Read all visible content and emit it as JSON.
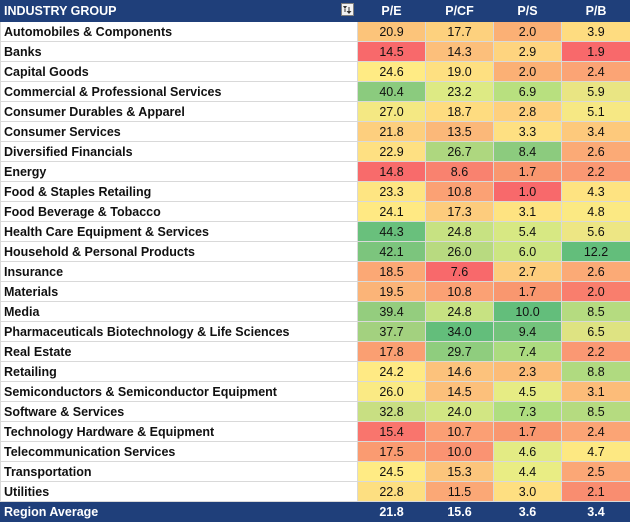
{
  "header": {
    "industry_group": "INDUSTRY GROUP",
    "columns": [
      "P/E",
      "P/CF",
      "P/S",
      "P/B"
    ],
    "filter_icon": "sort-filter-icon"
  },
  "rows": [
    {
      "name": "Automobiles & Components",
      "values": [
        "20.9",
        "17.7",
        "2.0",
        "3.9"
      ],
      "colors": [
        "#fcc47a",
        "#fdd17e",
        "#fbb075",
        "#fedc80"
      ]
    },
    {
      "name": "Banks",
      "values": [
        "14.5",
        "14.3",
        "2.9",
        "1.9"
      ],
      "colors": [
        "#f8696b",
        "#fcbf7b",
        "#fed47f",
        "#f8696b"
      ]
    },
    {
      "name": "Capital Goods",
      "values": [
        "24.6",
        "19.0",
        "2.0",
        "2.4"
      ],
      "colors": [
        "#ffeb84",
        "#fee081",
        "#fbb075",
        "#fba475"
      ]
    },
    {
      "name": "Commercial & Professional Services",
      "values": [
        "40.4",
        "23.2",
        "6.9",
        "5.9"
      ],
      "colors": [
        "#8bcb7e",
        "#ddea84",
        "#b8e07f",
        "#e9e583"
      ]
    },
    {
      "name": "Consumer Durables & Apparel",
      "values": [
        "27.0",
        "18.7",
        "2.8",
        "5.1"
      ],
      "colors": [
        "#f4e883",
        "#fedc80",
        "#fed07e",
        "#f6e884"
      ]
    },
    {
      "name": "Consumer Services",
      "values": [
        "21.8",
        "13.5",
        "3.3",
        "3.4"
      ],
      "colors": [
        "#fdcf7e",
        "#fbb879",
        "#fee082",
        "#fdc97c"
      ]
    },
    {
      "name": "Diversified Financials",
      "values": [
        "22.9",
        "26.7",
        "8.4",
        "2.6"
      ],
      "colors": [
        "#fee082",
        "#aed77f",
        "#8ccb7e",
        "#fbaa76"
      ]
    },
    {
      "name": "Energy",
      "values": [
        "14.8",
        "8.6",
        "1.7",
        "2.2"
      ],
      "colors": [
        "#f86b6b",
        "#f9826f",
        "#f9976f",
        "#fa9873"
      ]
    },
    {
      "name": "Food & Staples Retailing",
      "values": [
        "23.3",
        "10.8",
        "1.0",
        "4.3"
      ],
      "colors": [
        "#fee582",
        "#fba174",
        "#f8696b",
        "#fee381"
      ]
    },
    {
      "name": "Food Beverage & Tobacco",
      "values": [
        "24.1",
        "17.3",
        "3.1",
        "4.8"
      ],
      "colors": [
        "#ffe983",
        "#fdcc7d",
        "#fee381",
        "#fbe983"
      ]
    },
    {
      "name": "Health Care Equipment & Services",
      "values": [
        "44.3",
        "24.8",
        "5.4",
        "5.6"
      ],
      "colors": [
        "#69c07c",
        "#c7e282",
        "#d7e883",
        "#ede684"
      ]
    },
    {
      "name": "Household & Personal Products",
      "values": [
        "42.1",
        "26.0",
        "6.0",
        "12.2"
      ],
      "colors": [
        "#7cc57d",
        "#b8da80",
        "#cce582",
        "#63be7b"
      ]
    },
    {
      "name": "Insurance",
      "values": [
        "18.5",
        "7.6",
        "2.7",
        "2.6"
      ],
      "colors": [
        "#fba875",
        "#f8696b",
        "#fdcd7d",
        "#fbaa76"
      ]
    },
    {
      "name": "Materials",
      "values": [
        "19.5",
        "10.8",
        "1.7",
        "2.0"
      ],
      "colors": [
        "#fbb478",
        "#fba174",
        "#f9976f",
        "#f97e6d"
      ]
    },
    {
      "name": "Media",
      "values": [
        "39.4",
        "24.8",
        "10.0",
        "8.5"
      ],
      "colors": [
        "#94cd7e",
        "#c7e282",
        "#63be7b",
        "#b5db80"
      ]
    },
    {
      "name": "Pharmaceuticals Biotechnology & Life Sciences",
      "values": [
        "37.7",
        "34.0",
        "9.4",
        "6.5"
      ],
      "colors": [
        "#a3d17f",
        "#63be7b",
        "#73c37c",
        "#dee382"
      ]
    },
    {
      "name": "Real Estate",
      "values": [
        "17.8",
        "29.7",
        "7.4",
        "2.2"
      ],
      "colors": [
        "#fa9f72",
        "#8fcd7e",
        "#acdb80",
        "#fa9873"
      ]
    },
    {
      "name": "Retailing",
      "values": [
        "24.2",
        "14.6",
        "2.3",
        "8.8"
      ],
      "colors": [
        "#ffea84",
        "#fcc27c",
        "#fcbc78",
        "#b0da80"
      ]
    },
    {
      "name": "Semiconductors & Semiconductor Equipment",
      "values": [
        "26.0",
        "14.5",
        "4.5",
        "3.1"
      ],
      "colors": [
        "#faea84",
        "#fcc07b",
        "#e6ec84",
        "#fcbc79"
      ]
    },
    {
      "name": "Software & Services",
      "values": [
        "32.8",
        "24.0",
        "7.3",
        "8.5"
      ],
      "colors": [
        "#c8df82",
        "#d2e683",
        "#b0de80",
        "#b5db80"
      ]
    },
    {
      "name": "Technology Hardware & Equipment",
      "values": [
        "15.4",
        "10.7",
        "1.7",
        "2.4"
      ],
      "colors": [
        "#f9756d",
        "#fb9f74",
        "#f9976f",
        "#fba475"
      ]
    },
    {
      "name": "Telecommunication Services",
      "values": [
        "17.5",
        "10.0",
        "4.6",
        "4.7"
      ],
      "colors": [
        "#fa9b71",
        "#fa9372",
        "#e3eb84",
        "#fde882"
      ]
    },
    {
      "name": "Transportation",
      "values": [
        "24.5",
        "15.3",
        "4.4",
        "2.5"
      ],
      "colors": [
        "#ffeb84",
        "#fcc57c",
        "#e9ed84",
        "#fba776"
      ]
    },
    {
      "name": "Utilities",
      "values": [
        "22.8",
        "11.5",
        "3.0",
        "2.1"
      ],
      "colors": [
        "#fddf81",
        "#fba876",
        "#fedf81",
        "#f98d70"
      ]
    }
  ],
  "footer": {
    "label": "Region Average",
    "values": [
      "21.8",
      "15.6",
      "3.6",
      "3.4"
    ]
  }
}
